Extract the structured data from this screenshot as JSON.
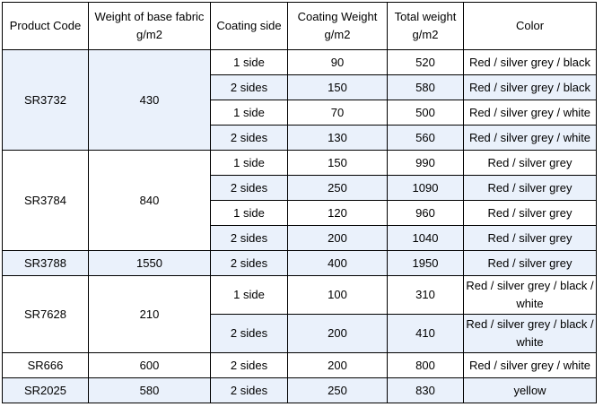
{
  "headers": {
    "code": "Product Code",
    "base": "Weight of base fabric g/m2",
    "side": "Coating side",
    "coat": "Coating Weight g/m2",
    "total": "Total weight g/m2",
    "color": "Color"
  },
  "rows": [
    {
      "code": "SR3732",
      "base": "430",
      "side": "1 side",
      "coat": "90",
      "total": "520",
      "color": "Red / silver grey / black"
    },
    {
      "side": "2 sides",
      "coat": "150",
      "total": "580",
      "color": "Red / silver grey / black"
    },
    {
      "side": "1 side",
      "coat": "70",
      "total": "500",
      "color": "Red / silver grey / white"
    },
    {
      "side": "2 sides",
      "coat": "130",
      "total": "560",
      "color": "Red / silver grey / white"
    },
    {
      "code": "SR3784",
      "base": "840",
      "side": "1 side",
      "coat": "150",
      "total": "990",
      "color": "Red / silver grey"
    },
    {
      "side": "2 sides",
      "coat": "250",
      "total": "1090",
      "color": "Red / silver grey"
    },
    {
      "side": "1 side",
      "coat": "120",
      "total": "960",
      "color": "Red / silver grey"
    },
    {
      "side": "2 sides",
      "coat": "200",
      "total": "1040",
      "color": "Red / silver grey"
    },
    {
      "code": "SR3788",
      "base": "1550",
      "side": "2 sides",
      "coat": "400",
      "total": "1950",
      "color": "Red / silver grey"
    },
    {
      "code": "SR7628",
      "base": "210",
      "side": "1 side",
      "coat": "100",
      "total": "310",
      "color": "Red / silver grey / black / white"
    },
    {
      "side": "2 sides",
      "coat": "200",
      "total": "410",
      "color": "Red / silver grey / black / white"
    },
    {
      "code": "SR666",
      "base": "600",
      "side": "2 sides",
      "coat": "200",
      "total": "800",
      "color": "Red / silver grey / white"
    },
    {
      "code": "SR2025",
      "base": "580",
      "side": "2 sides",
      "coat": "250",
      "total": "830",
      "color": "yellow"
    }
  ],
  "colors": {
    "band": "#eaf1fb",
    "border": "#000000"
  }
}
